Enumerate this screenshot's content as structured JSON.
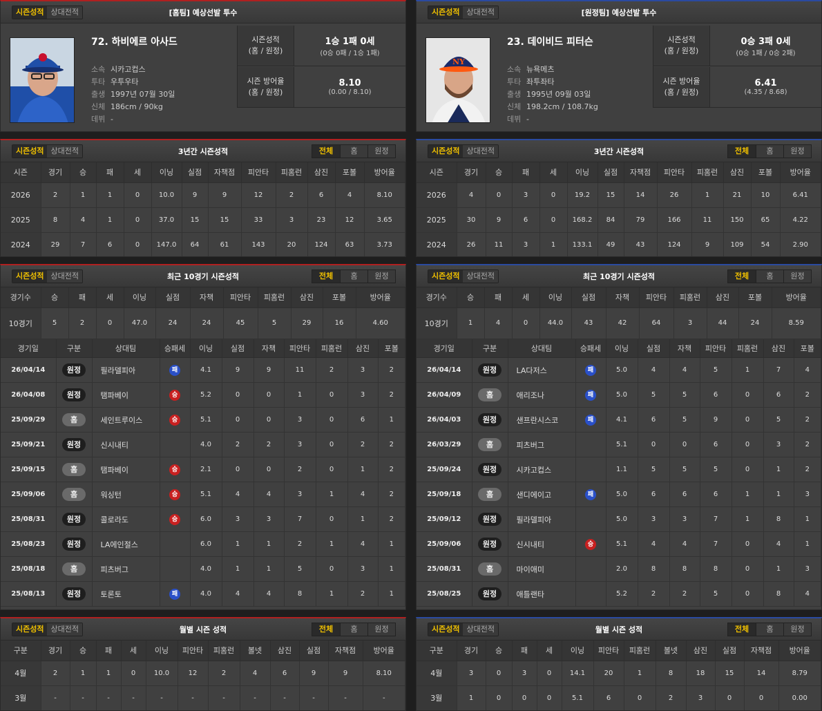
{
  "tabs": {
    "season": "시즌성적",
    "h2h": "상대전적"
  },
  "filters": {
    "all": "전체",
    "home": "홈",
    "away": "원정"
  },
  "titles": {
    "home_profile": "[홈팀] 예상선발 투수",
    "away_profile": "[원정팀] 예상선발 투수",
    "three_year": "3년간 시즌성적",
    "recent10": "최근 10경기 시즌성적",
    "monthly": "월별 시즌 성적"
  },
  "labels": {
    "team": "소속",
    "pitch": "투타",
    "birth": "출생",
    "body": "신체",
    "debut": "데뷔",
    "season_rec": "시즌성적",
    "season_rec_sub": "(홈 / 원정)",
    "season_era": "시즌 방어율",
    "season_era_sub": "(홈 / 원정)"
  },
  "colors": {
    "home_accent": "#b02020",
    "away_accent": "#2a4aa0",
    "win": "#c82020",
    "loss": "#2a50c8",
    "tab_active": "#f0c000"
  },
  "icons": {
    "player_photo": "player-photo"
  },
  "headers": {
    "three_year": [
      "시즌",
      "경기",
      "승",
      "패",
      "세",
      "이닝",
      "실점",
      "자책점",
      "피안타",
      "피홈런",
      "삼진",
      "포볼",
      "방어율"
    ],
    "recent_sum": [
      "경기수",
      "승",
      "패",
      "세",
      "이닝",
      "실점",
      "자책",
      "피안타",
      "피홈런",
      "삼진",
      "포볼",
      "방어율"
    ],
    "games": [
      "경기일",
      "구분",
      "상대팀",
      "승패세",
      "이닝",
      "실점",
      "자책",
      "피안타",
      "피홈런",
      "삼진",
      "포볼"
    ],
    "monthly": [
      "구분",
      "경기",
      "승",
      "패",
      "세",
      "이닝",
      "피안타",
      "피홈런",
      "볼넷",
      "삼진",
      "실점",
      "자책점",
      "방어율"
    ]
  },
  "home": {
    "name": "72. 하비에르 아사드",
    "team": "시카고컵스",
    "pitch": "우투우타",
    "birth": "1997년 07월 30일",
    "body": "186cm / 90kg",
    "debut": "-",
    "rec": "1승 1패 0세",
    "rec_sub": "(0승 0패 / 1승 1패)",
    "era": "8.10",
    "era_sub": "(0.00 / 8.10)",
    "three_year": [
      [
        "2026",
        "2",
        "1",
        "1",
        "0",
        "10.0",
        "9",
        "9",
        "12",
        "2",
        "6",
        "4",
        "8.10"
      ],
      [
        "2025",
        "8",
        "4",
        "1",
        "0",
        "37.0",
        "15",
        "15",
        "33",
        "3",
        "23",
        "12",
        "3.65"
      ],
      [
        "2024",
        "29",
        "7",
        "6",
        "0",
        "147.0",
        "64",
        "61",
        "143",
        "20",
        "124",
        "63",
        "3.73"
      ]
    ],
    "recent_sum": [
      "10경기",
      "5",
      "2",
      "0",
      "47.0",
      "24",
      "24",
      "45",
      "5",
      "29",
      "16",
      "4.60"
    ],
    "games": [
      {
        "date": "26/04/14",
        "loc": "원정",
        "opp": "필라델피아",
        "res": "패",
        "r": "L",
        "ip": "4.1",
        "runs": "9",
        "er": "9",
        "h": "11",
        "hr": "2",
        "so": "3",
        "bb": "2"
      },
      {
        "date": "26/04/08",
        "loc": "원정",
        "opp": "탬파베이",
        "res": "승",
        "r": "W",
        "ip": "5.2",
        "runs": "0",
        "er": "0",
        "h": "1",
        "hr": "0",
        "so": "3",
        "bb": "2"
      },
      {
        "date": "25/09/29",
        "loc": "홈",
        "opp": "세인트루이스",
        "res": "승",
        "r": "W",
        "ip": "5.1",
        "runs": "0",
        "er": "0",
        "h": "3",
        "hr": "0",
        "so": "6",
        "bb": "1"
      },
      {
        "date": "25/09/21",
        "loc": "원정",
        "opp": "신시내티",
        "res": "",
        "r": "",
        "ip": "4.0",
        "runs": "2",
        "er": "2",
        "h": "3",
        "hr": "0",
        "so": "2",
        "bb": "2"
      },
      {
        "date": "25/09/15",
        "loc": "홈",
        "opp": "탬파베이",
        "res": "승",
        "r": "W",
        "ip": "2.1",
        "runs": "0",
        "er": "0",
        "h": "2",
        "hr": "0",
        "so": "1",
        "bb": "2"
      },
      {
        "date": "25/09/06",
        "loc": "홈",
        "opp": "워싱턴",
        "res": "승",
        "r": "W",
        "ip": "5.1",
        "runs": "4",
        "er": "4",
        "h": "3",
        "hr": "1",
        "so": "4",
        "bb": "2"
      },
      {
        "date": "25/08/31",
        "loc": "원정",
        "opp": "콜로라도",
        "res": "승",
        "r": "W",
        "ip": "6.0",
        "runs": "3",
        "er": "3",
        "h": "7",
        "hr": "0",
        "so": "1",
        "bb": "2"
      },
      {
        "date": "25/08/23",
        "loc": "원정",
        "opp": "LA에인절스",
        "res": "",
        "r": "",
        "ip": "6.0",
        "runs": "1",
        "er": "1",
        "h": "2",
        "hr": "1",
        "so": "4",
        "bb": "1"
      },
      {
        "date": "25/08/18",
        "loc": "홈",
        "opp": "피츠버그",
        "res": "",
        "r": "",
        "ip": "4.0",
        "runs": "1",
        "er": "1",
        "h": "5",
        "hr": "0",
        "so": "3",
        "bb": "1"
      },
      {
        "date": "25/08/13",
        "loc": "원정",
        "opp": "토론토",
        "res": "패",
        "r": "L",
        "ip": "4.0",
        "runs": "4",
        "er": "4",
        "h": "8",
        "hr": "1",
        "so": "2",
        "bb": "1"
      }
    ],
    "monthly": [
      [
        "4월",
        "2",
        "1",
        "1",
        "0",
        "10.0",
        "12",
        "2",
        "4",
        "6",
        "9",
        "9",
        "8.10"
      ],
      [
        "3월",
        "-",
        "-",
        "-",
        "-",
        "-",
        "-",
        "-",
        "-",
        "-",
        "-",
        "-",
        "-"
      ]
    ]
  },
  "away": {
    "name": "23. 데이비드 피터슨",
    "team": "뉴욕메츠",
    "pitch": "좌투좌타",
    "birth": "1995년 09월 03일",
    "body": "198.2cm / 108.7kg",
    "debut": "-",
    "rec": "0승 3패 0세",
    "rec_sub": "(0승 1패 / 0승 2패)",
    "era": "6.41",
    "era_sub": "(4.35 / 8.68)",
    "three_year": [
      [
        "2026",
        "4",
        "0",
        "3",
        "0",
        "19.2",
        "15",
        "14",
        "26",
        "1",
        "21",
        "10",
        "6.41"
      ],
      [
        "2025",
        "30",
        "9",
        "6",
        "0",
        "168.2",
        "84",
        "79",
        "166",
        "11",
        "150",
        "65",
        "4.22"
      ],
      [
        "2024",
        "26",
        "11",
        "3",
        "1",
        "133.1",
        "49",
        "43",
        "124",
        "9",
        "109",
        "54",
        "2.90"
      ]
    ],
    "recent_sum": [
      "10경기",
      "1",
      "4",
      "0",
      "44.0",
      "43",
      "42",
      "64",
      "3",
      "44",
      "24",
      "8.59"
    ],
    "games": [
      {
        "date": "26/04/14",
        "loc": "원정",
        "opp": "LA다저스",
        "res": "패",
        "r": "L",
        "ip": "5.0",
        "runs": "4",
        "er": "4",
        "h": "5",
        "hr": "1",
        "so": "7",
        "bb": "4"
      },
      {
        "date": "26/04/09",
        "loc": "홈",
        "opp": "애리조나",
        "res": "패",
        "r": "L",
        "ip": "5.0",
        "runs": "5",
        "er": "5",
        "h": "6",
        "hr": "0",
        "so": "6",
        "bb": "2"
      },
      {
        "date": "26/04/03",
        "loc": "원정",
        "opp": "샌프란시스코",
        "res": "패",
        "r": "L",
        "ip": "4.1",
        "runs": "6",
        "er": "5",
        "h": "9",
        "hr": "0",
        "so": "5",
        "bb": "2"
      },
      {
        "date": "26/03/29",
        "loc": "홈",
        "opp": "피츠버그",
        "res": "",
        "r": "",
        "ip": "5.1",
        "runs": "0",
        "er": "0",
        "h": "6",
        "hr": "0",
        "so": "3",
        "bb": "2"
      },
      {
        "date": "25/09/24",
        "loc": "원정",
        "opp": "시카고컵스",
        "res": "",
        "r": "",
        "ip": "1.1",
        "runs": "5",
        "er": "5",
        "h": "5",
        "hr": "0",
        "so": "1",
        "bb": "2"
      },
      {
        "date": "25/09/18",
        "loc": "홈",
        "opp": "샌디에이고",
        "res": "패",
        "r": "L",
        "ip": "5.0",
        "runs": "6",
        "er": "6",
        "h": "6",
        "hr": "1",
        "so": "1",
        "bb": "3"
      },
      {
        "date": "25/09/12",
        "loc": "원정",
        "opp": "필라델피아",
        "res": "",
        "r": "",
        "ip": "5.0",
        "runs": "3",
        "er": "3",
        "h": "7",
        "hr": "1",
        "so": "8",
        "bb": "1"
      },
      {
        "date": "25/09/06",
        "loc": "원정",
        "opp": "신시내티",
        "res": "승",
        "r": "W",
        "ip": "5.1",
        "runs": "4",
        "er": "4",
        "h": "7",
        "hr": "0",
        "so": "4",
        "bb": "1"
      },
      {
        "date": "25/08/31",
        "loc": "홈",
        "opp": "마이애미",
        "res": "",
        "r": "",
        "ip": "2.0",
        "runs": "8",
        "er": "8",
        "h": "8",
        "hr": "0",
        "so": "1",
        "bb": "3"
      },
      {
        "date": "25/08/25",
        "loc": "원정",
        "opp": "애틀랜타",
        "res": "",
        "r": "",
        "ip": "5.2",
        "runs": "2",
        "er": "2",
        "h": "5",
        "hr": "0",
        "so": "8",
        "bb": "4"
      }
    ],
    "monthly": [
      [
        "4월",
        "3",
        "0",
        "3",
        "0",
        "14.1",
        "20",
        "1",
        "8",
        "18",
        "15",
        "14",
        "8.79"
      ],
      [
        "3월",
        "1",
        "0",
        "0",
        "0",
        "5.1",
        "6",
        "0",
        "2",
        "3",
        "0",
        "0",
        "0.00"
      ]
    ]
  }
}
